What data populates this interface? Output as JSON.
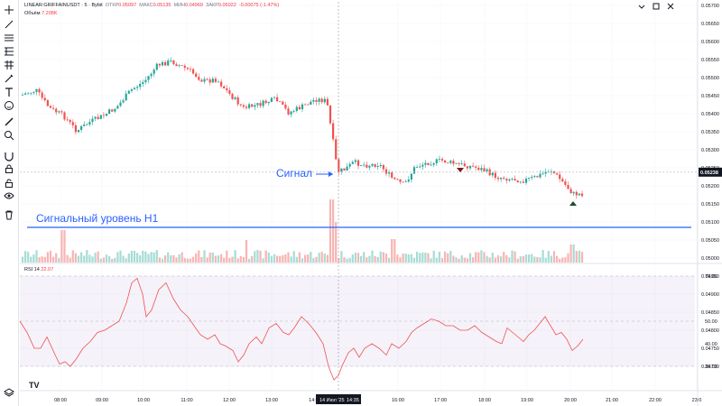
{
  "header": {
    "symbol": "LINEAR:GRIFFAINUSDT · 5 · Bybit",
    "open_label": "ОТКР",
    "open_value": "0.05097",
    "high_label": "МАКС",
    "high_value": "0.05135",
    "low_label": "МИН",
    "low_value": "0.04969",
    "close_label": "ЗАКР",
    "close_value": "0.05022",
    "change_value": "-0.00075 (-1.47%)"
  },
  "volume": {
    "label": "Объём",
    "value": "7.208K"
  },
  "rsi": {
    "label": "RSI 14",
    "value": "22.07",
    "levels": [
      "70.00",
      "50.00",
      "40.00",
      "30.00"
    ]
  },
  "annotations": {
    "signal": "Сигнал",
    "level": "Сигнальный уровень H1"
  },
  "price_axis": {
    "ticks": [
      "0.05700",
      "0.05650",
      "0.05600",
      "0.05550",
      "0.05500",
      "0.05450",
      "0.05400",
      "0.05350",
      "0.05300",
      "0.05250",
      "0.05200",
      "0.05150",
      "0.05100",
      "0.05050",
      "0.05000",
      "0.04950",
      "0.04900",
      "0.04850",
      "0.04800",
      "0.04750",
      "0.04700"
    ],
    "current_price": "0.05238"
  },
  "time_axis": {
    "ticks": [
      "08:00",
      "09:00",
      "10:00",
      "11:00",
      "12:00",
      "13:00",
      "14:",
      "16:00",
      "17:00",
      "18:00",
      "19:00",
      "20:00",
      "21:00",
      "22:00",
      "23:0"
    ],
    "crosshair_date": "14 Июл '25",
    "crosshair_time": "14:35"
  },
  "tools": [
    "cursor-icon",
    "trend-line-icon",
    "horizontal-lines-icon",
    "pitchfork-icon",
    "fib-icon",
    "brush-icon",
    "text-icon",
    "emoji-icon",
    "ruler-icon",
    "zoom-icon",
    "magnet-icon",
    "lock-icon",
    "eye-icon",
    "trash-icon"
  ],
  "logo": "TV",
  "colors": {
    "up": "#26a69a",
    "down": "#ef5350",
    "level": "#2962ff",
    "rsi": "#ef5350",
    "rsi_band": "#7e57c2"
  }
}
